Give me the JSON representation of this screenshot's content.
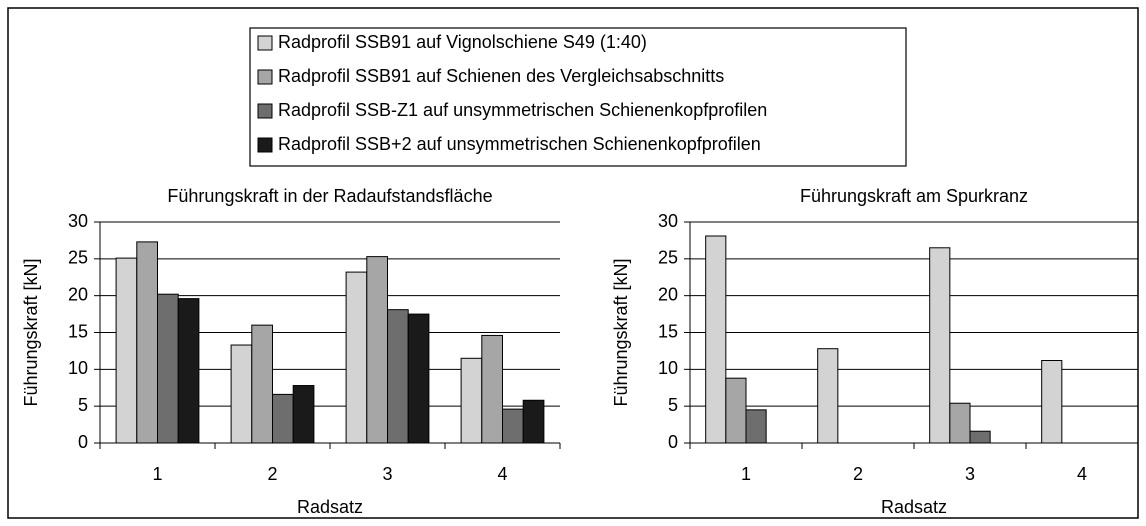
{
  "legend": {
    "series": [
      {
        "name": "Radprofil SSB91 auf Vignolschiene S49 (1:40)",
        "color": "#d3d3d3"
      },
      {
        "name": "Radprofil SSB91 auf Schienen des Vergleichsabschnitts",
        "color": "#a6a6a6"
      },
      {
        "name": "Radprofil SSB-Z1 auf unsymmetrischen Schienenkopfprofilen",
        "color": "#6e6e6e"
      },
      {
        "name": "Radprofil SSB+2 auf unsymmetrischen Schienenkopfprofilen",
        "color": "#1a1a1a"
      }
    ]
  },
  "chart_data": [
    {
      "type": "bar",
      "title": "Führungskraft in der Radaufstandsfläche",
      "x_label": "Radsatz",
      "y_label": "Führungskraft [kN]",
      "categories": [
        "1",
        "2",
        "3",
        "4"
      ],
      "ylim": [
        0,
        30
      ],
      "yticks": [
        0,
        5,
        10,
        15,
        20,
        25,
        30
      ],
      "grid": true,
      "series": [
        {
          "values": [
            25.1,
            13.3,
            23.2,
            11.5
          ]
        },
        {
          "values": [
            27.3,
            16.0,
            25.3,
            14.6
          ]
        },
        {
          "values": [
            20.2,
            6.6,
            18.1,
            4.6
          ]
        },
        {
          "values": [
            19.6,
            7.8,
            17.5,
            5.8
          ]
        }
      ]
    },
    {
      "type": "bar",
      "title": "Führungskraft am Spurkranz",
      "x_label": "Radsatz",
      "y_label": "Führungskraft [kN]",
      "categories": [
        "1",
        "2",
        "3",
        "4"
      ],
      "ylim": [
        0,
        30
      ],
      "yticks": [
        0,
        5,
        10,
        15,
        20,
        25,
        30
      ],
      "grid": true,
      "series": [
        {
          "values": [
            28.1,
            12.8,
            26.5,
            11.2
          ]
        },
        {
          "values": [
            8.8,
            null,
            5.4,
            null
          ]
        },
        {
          "values": [
            4.5,
            null,
            1.6,
            null
          ]
        },
        {
          "values": [
            null,
            null,
            null,
            null
          ]
        }
      ]
    }
  ]
}
